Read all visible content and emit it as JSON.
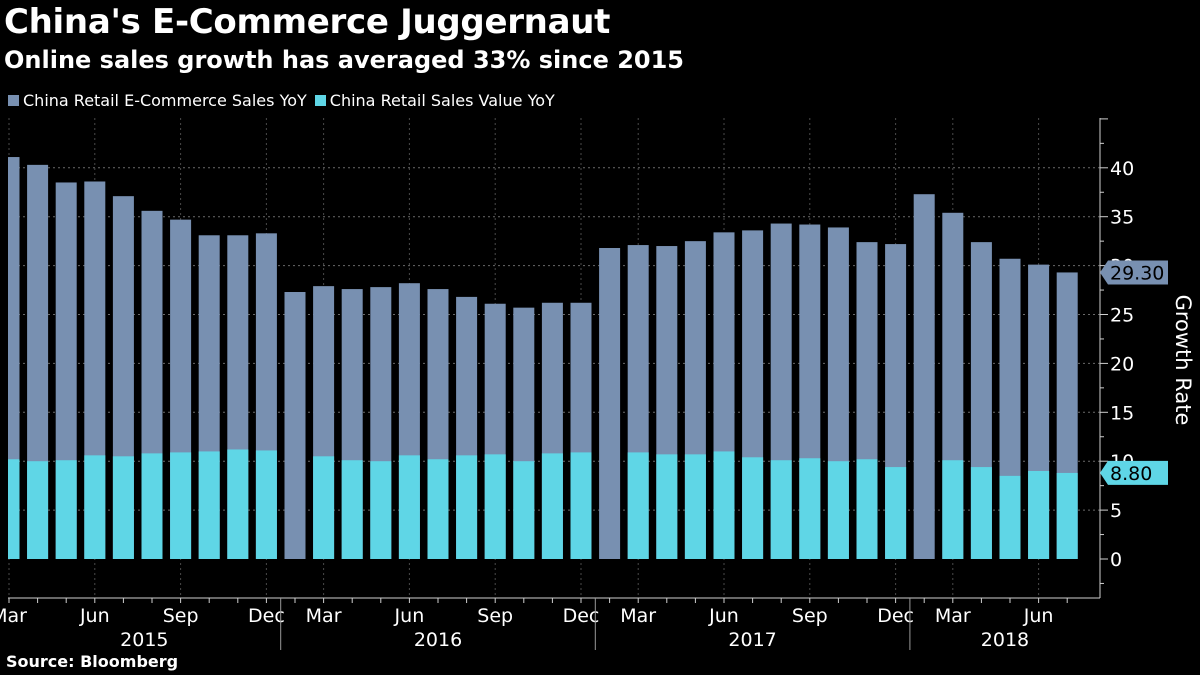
{
  "title": "China's E-Commerce Juggernaut",
  "subtitle": "Online sales growth has averaged 33% since 2015",
  "source": "Source: Bloomberg",
  "chart_data": {
    "type": "bar",
    "ylabel": "Growth Rate",
    "ylim": [
      -4,
      45
    ],
    "yticks": [
      0,
      5,
      10,
      15,
      20,
      25,
      30,
      35,
      40
    ],
    "grid": true,
    "legend_position": "top-left",
    "categories": [
      "2015-03",
      "2015-04",
      "2015-05",
      "2015-06",
      "2015-07",
      "2015-08",
      "2015-09",
      "2015-10",
      "2015-11",
      "2015-12",
      "2016-02",
      "2016-03",
      "2016-04",
      "2016-05",
      "2016-06",
      "2016-07",
      "2016-08",
      "2016-09",
      "2016-10",
      "2016-11",
      "2016-12",
      "2017-02",
      "2017-03",
      "2017-04",
      "2017-05",
      "2017-06",
      "2017-07",
      "2017-08",
      "2017-09",
      "2017-10",
      "2017-11",
      "2017-12",
      "2018-02",
      "2018-03",
      "2018-04",
      "2018-05",
      "2018-06",
      "2018-07"
    ],
    "series": [
      {
        "name": "China Retail E-Commerce Sales YoY",
        "color": "#7890b1",
        "values": [
          41.1,
          40.3,
          38.5,
          38.6,
          37.1,
          35.6,
          34.7,
          33.1,
          33.1,
          33.3,
          27.3,
          27.9,
          27.6,
          27.8,
          28.2,
          27.6,
          26.8,
          26.1,
          25.7,
          26.2,
          26.2,
          31.8,
          32.1,
          32.0,
          32.5,
          33.4,
          33.6,
          34.3,
          34.2,
          33.9,
          32.4,
          32.2,
          37.3,
          35.4,
          32.4,
          30.7,
          30.1,
          29.3
        ]
      },
      {
        "name": "China Retail Sales Value YoY",
        "color": "#5fd6e6",
        "values": [
          10.2,
          10.0,
          10.1,
          10.6,
          10.5,
          10.8,
          10.9,
          11.0,
          11.2,
          11.1,
          0,
          10.5,
          10.1,
          10.0,
          10.6,
          10.2,
          10.6,
          10.7,
          10.0,
          10.8,
          10.9,
          0,
          10.9,
          10.7,
          10.7,
          11.0,
          10.4,
          10.1,
          10.3,
          10.0,
          10.2,
          9.4,
          0,
          10.1,
          9.4,
          8.5,
          9.0,
          8.8
        ]
      }
    ],
    "x_tick_labels": [
      {
        "label": "Mar",
        "index": 0
      },
      {
        "label": "Jun",
        "index": 3
      },
      {
        "label": "Sep",
        "index": 6
      },
      {
        "label": "Dec",
        "index": 9
      },
      {
        "label": "Mar",
        "index": 11
      },
      {
        "label": "Jun",
        "index": 14
      },
      {
        "label": "Sep",
        "index": 17
      },
      {
        "label": "Dec",
        "index": 20
      },
      {
        "label": "Mar",
        "index": 22
      },
      {
        "label": "Jun",
        "index": 25
      },
      {
        "label": "Sep",
        "index": 28
      },
      {
        "label": "Dec",
        "index": 31
      },
      {
        "label": "Mar",
        "index": 33
      },
      {
        "label": "Jun",
        "index": 36
      }
    ],
    "year_labels": [
      {
        "label": "2015",
        "first_index": 0,
        "last_index": 9
      },
      {
        "label": "2016",
        "first_index": 10,
        "last_index": 20
      },
      {
        "label": "2017",
        "first_index": 21,
        "last_index": 31
      },
      {
        "label": "2018",
        "first_index": 32,
        "last_index": 37
      }
    ],
    "last_value_labels": [
      {
        "series": 0,
        "text": "29.30"
      },
      {
        "series": 1,
        "text": "8.80"
      }
    ]
  }
}
